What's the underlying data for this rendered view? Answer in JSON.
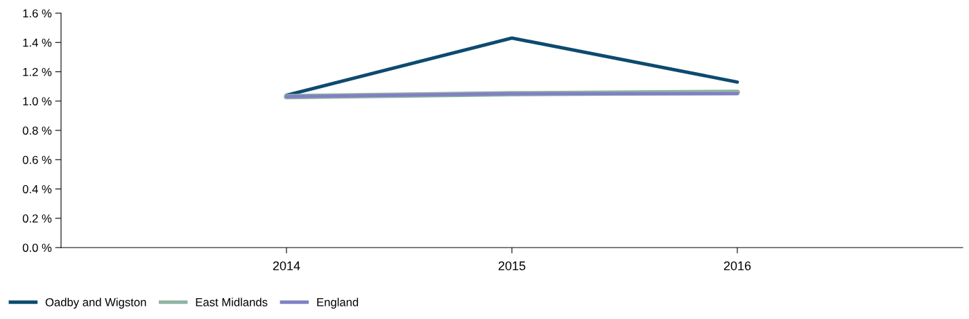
{
  "chart_data": {
    "type": "line",
    "categories": [
      "2014",
      "2015",
      "2016"
    ],
    "series": [
      {
        "name": "Oadby and Wigston",
        "color": "#0d4a70",
        "values": [
          1.04,
          1.43,
          1.13
        ]
      },
      {
        "name": "East Midlands",
        "color": "#8fb3a3",
        "values": [
          1.03,
          1.05,
          1.06
        ]
      },
      {
        "name": "England",
        "color": "#8080c4",
        "values": [
          1.03,
          1.05,
          1.05
        ]
      }
    ],
    "ylim": [
      0,
      1.6
    ],
    "yticks": [
      {
        "value": 0,
        "label": "0.0 %"
      },
      {
        "value": 0.2,
        "label": "0.2 %"
      },
      {
        "value": 0.4,
        "label": "0.4 %"
      },
      {
        "value": 0.6,
        "label": "0.6 %"
      },
      {
        "value": 0.8,
        "label": "0.8 %"
      },
      {
        "value": 1.0,
        "label": "1.0 %"
      },
      {
        "value": 1.2,
        "label": "1.2 %"
      },
      {
        "value": 1.4,
        "label": "1.4 %"
      },
      {
        "value": 1.6,
        "label": "1.6 %"
      }
    ],
    "grid": false,
    "legend": "bottom left",
    "marker": "none",
    "line_style": "solid"
  }
}
